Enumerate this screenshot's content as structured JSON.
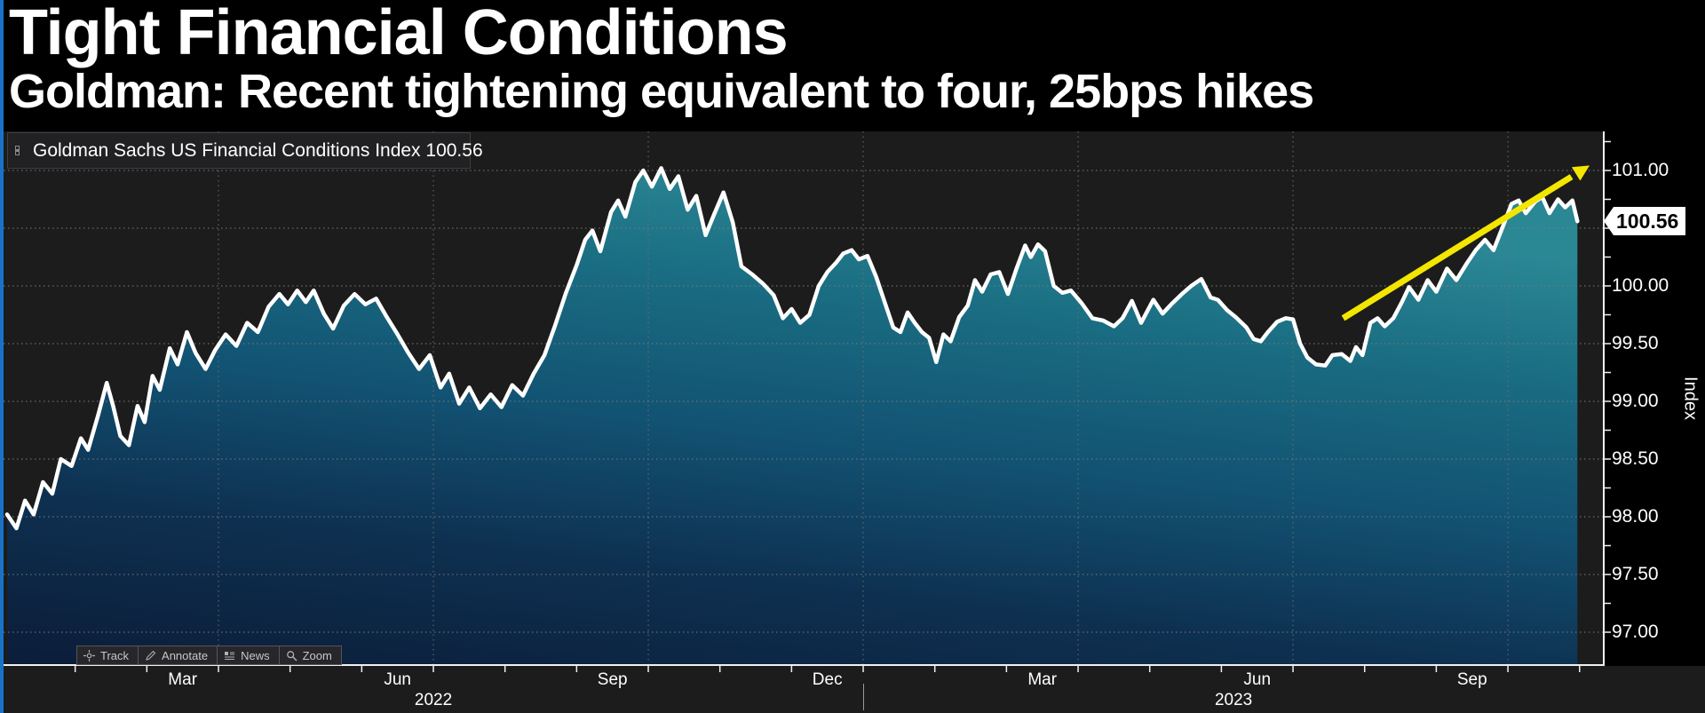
{
  "header": {
    "title": "Tight Financial Conditions",
    "subtitle": "Goldman: Recent tightening equivalent to four, 25bps hikes"
  },
  "legend": {
    "expand_icon": "expand-icon",
    "swatch_color": "#ffffff",
    "label": "Goldman Sachs US Financial Conditions Index 100.56"
  },
  "toolbar": {
    "buttons": [
      {
        "id": "track",
        "label": "Track",
        "icon": "crosshair-icon"
      },
      {
        "id": "annotate",
        "label": "Annotate",
        "icon": "pencil-icon"
      },
      {
        "id": "news",
        "label": "News",
        "icon": "news-lines-icon"
      },
      {
        "id": "zoom",
        "label": "Zoom",
        "icon": "magnifier-icon"
      }
    ]
  },
  "value_tag": {
    "label": "100.56",
    "bg": "#ffffff",
    "text_color": "#000000"
  },
  "colors": {
    "page_bg": "#000000",
    "plot_bg": "#1c1c1c",
    "left_accent": "#1873c8",
    "grid": "#7c7c7c",
    "line": "#ffffff",
    "fill_teal": "#2a8794",
    "fill_navy": "#0b1c38",
    "arrow": "#f3e600",
    "axis": "#f0f0f0"
  },
  "chart_data": {
    "type": "area",
    "title": "Goldman Sachs US Financial Conditions Index",
    "ylabel": "Index",
    "xlabel": "",
    "x_unit": "months since 2022-01-01",
    "x_range_dates": [
      "2022-01",
      "2023-11"
    ],
    "ylim": [
      96.72,
      101.34
    ],
    "grid": "dotted",
    "legend_position": "top-left",
    "y_ticks": [
      {
        "v": 101.0,
        "label": "101.00"
      },
      {
        "v": 100.5,
        "label": "100.50"
      },
      {
        "v": 100.0,
        "label": "100.00"
      },
      {
        "v": 99.5,
        "label": "99.50"
      },
      {
        "v": 99.0,
        "label": "99.00"
      },
      {
        "v": 98.5,
        "label": "98.50"
      },
      {
        "v": 98.0,
        "label": "98.00"
      },
      {
        "v": 97.5,
        "label": "97.50"
      },
      {
        "v": 97.0,
        "label": "97.00"
      }
    ],
    "y_minor_tick_step": 0.25,
    "x_axis": {
      "month_labels": [
        {
          "m": 2.5,
          "label": "Mar"
        },
        {
          "m": 5.5,
          "label": "Jun"
        },
        {
          "m": 8.5,
          "label": "Sep"
        },
        {
          "m": 11.5,
          "label": "Dec"
        },
        {
          "m": 14.5,
          "label": "Mar"
        },
        {
          "m": 17.5,
          "label": "Jun"
        },
        {
          "m": 20.5,
          "label": "Sep"
        }
      ],
      "year_labels": [
        {
          "m": 6.0,
          "label": "2022"
        },
        {
          "m": 17.17,
          "label": "2023"
        }
      ],
      "year_divider_month": 12,
      "tick_every_month": 1,
      "first_tick_month": 1,
      "last_tick_month": 22
    },
    "vertical_gridline_months": [
      3,
      6,
      9,
      12,
      15,
      18,
      21
    ],
    "series": [
      {
        "name": "Goldman Sachs US Financial Conditions Index",
        "color": "#ffffff",
        "last_value": 100.56,
        "last_value_label": "100.56",
        "points": [
          [
            0.05,
            98.02
          ],
          [
            0.18,
            97.9
          ],
          [
            0.3,
            98.14
          ],
          [
            0.42,
            98.02
          ],
          [
            0.55,
            98.3
          ],
          [
            0.68,
            98.2
          ],
          [
            0.8,
            98.5
          ],
          [
            0.95,
            98.44
          ],
          [
            1.08,
            98.68
          ],
          [
            1.18,
            98.58
          ],
          [
            1.32,
            98.88
          ],
          [
            1.44,
            99.16
          ],
          [
            1.53,
            98.96
          ],
          [
            1.63,
            98.7
          ],
          [
            1.75,
            98.62
          ],
          [
            1.87,
            98.96
          ],
          [
            1.97,
            98.82
          ],
          [
            2.08,
            99.22
          ],
          [
            2.18,
            99.1
          ],
          [
            2.32,
            99.46
          ],
          [
            2.43,
            99.32
          ],
          [
            2.56,
            99.6
          ],
          [
            2.68,
            99.42
          ],
          [
            2.82,
            99.28
          ],
          [
            2.95,
            99.44
          ],
          [
            3.1,
            99.58
          ],
          [
            3.25,
            99.48
          ],
          [
            3.4,
            99.68
          ],
          [
            3.55,
            99.6
          ],
          [
            3.7,
            99.82
          ],
          [
            3.85,
            99.93
          ],
          [
            3.97,
            99.84
          ],
          [
            4.1,
            99.96
          ],
          [
            4.22,
            99.86
          ],
          [
            4.33,
            99.96
          ],
          [
            4.47,
            99.76
          ],
          [
            4.6,
            99.63
          ],
          [
            4.75,
            99.83
          ],
          [
            4.9,
            99.93
          ],
          [
            5.05,
            99.84
          ],
          [
            5.2,
            99.89
          ],
          [
            5.35,
            99.73
          ],
          [
            5.5,
            99.58
          ],
          [
            5.65,
            99.42
          ],
          [
            5.8,
            99.28
          ],
          [
            5.95,
            99.4
          ],
          [
            6.1,
            99.12
          ],
          [
            6.22,
            99.24
          ],
          [
            6.36,
            98.98
          ],
          [
            6.5,
            99.12
          ],
          [
            6.65,
            98.94
          ],
          [
            6.8,
            99.06
          ],
          [
            6.95,
            98.95
          ],
          [
            7.1,
            99.14
          ],
          [
            7.25,
            99.05
          ],
          [
            7.4,
            99.24
          ],
          [
            7.55,
            99.4
          ],
          [
            7.7,
            99.66
          ],
          [
            7.85,
            99.94
          ],
          [
            8.0,
            100.18
          ],
          [
            8.12,
            100.4
          ],
          [
            8.22,
            100.48
          ],
          [
            8.33,
            100.3
          ],
          [
            8.48,
            100.64
          ],
          [
            8.58,
            100.74
          ],
          [
            8.68,
            100.6
          ],
          [
            8.82,
            100.9
          ],
          [
            8.93,
            101.0
          ],
          [
            9.05,
            100.86
          ],
          [
            9.18,
            101.02
          ],
          [
            9.3,
            100.84
          ],
          [
            9.42,
            100.95
          ],
          [
            9.55,
            100.66
          ],
          [
            9.67,
            100.78
          ],
          [
            9.8,
            100.44
          ],
          [
            9.92,
            100.62
          ],
          [
            10.05,
            100.81
          ],
          [
            10.18,
            100.55
          ],
          [
            10.3,
            100.17
          ],
          [
            10.45,
            100.1
          ],
          [
            10.6,
            100.02
          ],
          [
            10.75,
            99.92
          ],
          [
            10.88,
            99.72
          ],
          [
            11.0,
            99.8
          ],
          [
            11.12,
            99.68
          ],
          [
            11.25,
            99.75
          ],
          [
            11.38,
            100.0
          ],
          [
            11.5,
            100.12
          ],
          [
            11.62,
            100.2
          ],
          [
            11.72,
            100.28
          ],
          [
            11.84,
            100.31
          ],
          [
            11.94,
            100.23
          ],
          [
            12.06,
            100.26
          ],
          [
            12.18,
            100.08
          ],
          [
            12.3,
            99.86
          ],
          [
            12.42,
            99.64
          ],
          [
            12.52,
            99.6
          ],
          [
            12.62,
            99.77
          ],
          [
            12.72,
            99.68
          ],
          [
            12.82,
            99.6
          ],
          [
            12.92,
            99.55
          ],
          [
            13.02,
            99.34
          ],
          [
            13.12,
            99.58
          ],
          [
            13.22,
            99.52
          ],
          [
            13.34,
            99.73
          ],
          [
            13.46,
            99.83
          ],
          [
            13.56,
            100.05
          ],
          [
            13.66,
            99.95
          ],
          [
            13.78,
            100.1
          ],
          [
            13.9,
            100.12
          ],
          [
            14.02,
            99.93
          ],
          [
            14.14,
            100.15
          ],
          [
            14.26,
            100.35
          ],
          [
            14.34,
            100.25
          ],
          [
            14.44,
            100.36
          ],
          [
            14.54,
            100.3
          ],
          [
            14.66,
            100.0
          ],
          [
            14.78,
            99.94
          ],
          [
            14.9,
            99.96
          ],
          [
            15.05,
            99.85
          ],
          [
            15.2,
            99.72
          ],
          [
            15.35,
            99.7
          ],
          [
            15.5,
            99.65
          ],
          [
            15.62,
            99.72
          ],
          [
            15.75,
            99.87
          ],
          [
            15.88,
            99.68
          ],
          [
            16.05,
            99.88
          ],
          [
            16.18,
            99.76
          ],
          [
            16.3,
            99.84
          ],
          [
            16.45,
            99.93
          ],
          [
            16.58,
            100.0
          ],
          [
            16.72,
            100.06
          ],
          [
            16.85,
            99.9
          ],
          [
            16.95,
            99.88
          ],
          [
            17.08,
            99.79
          ],
          [
            17.2,
            99.73
          ],
          [
            17.35,
            99.64
          ],
          [
            17.45,
            99.54
          ],
          [
            17.55,
            99.52
          ],
          [
            17.65,
            99.6
          ],
          [
            17.78,
            99.69
          ],
          [
            17.9,
            99.72
          ],
          [
            18.0,
            99.71
          ],
          [
            18.1,
            99.5
          ],
          [
            18.2,
            99.38
          ],
          [
            18.32,
            99.32
          ],
          [
            18.45,
            99.31
          ],
          [
            18.55,
            99.4
          ],
          [
            18.68,
            99.41
          ],
          [
            18.8,
            99.35
          ],
          [
            18.88,
            99.47
          ],
          [
            18.97,
            99.4
          ],
          [
            19.08,
            99.68
          ],
          [
            19.18,
            99.72
          ],
          [
            19.28,
            99.65
          ],
          [
            19.4,
            99.72
          ],
          [
            19.52,
            99.86
          ],
          [
            19.62,
            99.99
          ],
          [
            19.75,
            99.88
          ],
          [
            19.88,
            100.05
          ],
          [
            20.0,
            99.95
          ],
          [
            20.15,
            100.15
          ],
          [
            20.28,
            100.05
          ],
          [
            20.42,
            100.19
          ],
          [
            20.55,
            100.31
          ],
          [
            20.68,
            100.4
          ],
          [
            20.8,
            100.31
          ],
          [
            20.92,
            100.5
          ],
          [
            21.05,
            100.71
          ],
          [
            21.15,
            100.74
          ],
          [
            21.25,
            100.63
          ],
          [
            21.38,
            100.73
          ],
          [
            21.48,
            100.77
          ],
          [
            21.58,
            100.63
          ],
          [
            21.7,
            100.75
          ],
          [
            21.8,
            100.68
          ],
          [
            21.9,
            100.74
          ],
          [
            21.97,
            100.56
          ]
        ]
      }
    ],
    "annotation_arrow": {
      "from": [
        18.7,
        99.72
      ],
      "to": [
        21.95,
        100.97
      ],
      "color": "#f3e600"
    }
  }
}
